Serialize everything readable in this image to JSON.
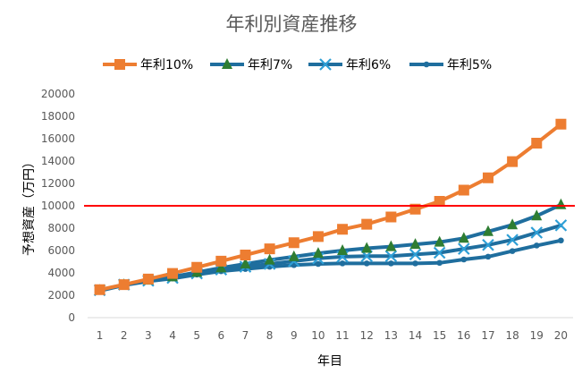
{
  "chart_data": {
    "type": "line",
    "title": "年利別資産推移",
    "xlabel": "年目",
    "ylabel": "予想資産（万円）",
    "categories": [
      "1",
      "2",
      "3",
      "4",
      "5",
      "6",
      "7",
      "8",
      "9",
      "10",
      "11",
      "12",
      "13",
      "14",
      "15",
      "16",
      "17",
      "18",
      "19",
      "20"
    ],
    "ylim": [
      0,
      20000
    ],
    "yticks": [
      0,
      2000,
      4000,
      6000,
      8000,
      10000,
      12000,
      14000,
      16000,
      18000,
      20000
    ],
    "grid": false,
    "legend_position": "top",
    "reference_line": {
      "value": 10000,
      "color": "#ff0000"
    },
    "series": [
      {
        "name": "年利10%",
        "color": "#ed7d31",
        "marker": "square",
        "values": [
          2500,
          2950,
          3450,
          3950,
          4500,
          5050,
          5600,
          6150,
          6700,
          7250,
          7900,
          8350,
          9000,
          9700,
          10400,
          11400,
          12500,
          13950,
          15600,
          17300
        ]
      },
      {
        "name": "年利7%",
        "color": "#1f6e9e",
        "marker": "triangle",
        "markerColor": "#2e7d32",
        "values": [
          2450,
          2950,
          3350,
          3650,
          4050,
          4450,
          4800,
          5150,
          5450,
          5750,
          6000,
          6200,
          6350,
          6550,
          6750,
          7100,
          7700,
          8300,
          9100,
          10100
        ]
      },
      {
        "name": "年利6%",
        "color": "#1f6e9e",
        "marker": "cross",
        "markerColor": "#2e9fd6",
        "values": [
          2450,
          2950,
          3300,
          3550,
          3950,
          4300,
          4550,
          4800,
          5050,
          5300,
          5450,
          5500,
          5500,
          5650,
          5800,
          6150,
          6500,
          6950,
          7600,
          8250
        ]
      },
      {
        "name": "年利5%",
        "color": "#1f6e9e",
        "marker": "circle",
        "values": [
          2400,
          2900,
          3250,
          3500,
          3850,
          4150,
          4350,
          4550,
          4700,
          4800,
          4850,
          4850,
          4850,
          4850,
          4900,
          5200,
          5450,
          5950,
          6450,
          6900
        ]
      }
    ]
  }
}
